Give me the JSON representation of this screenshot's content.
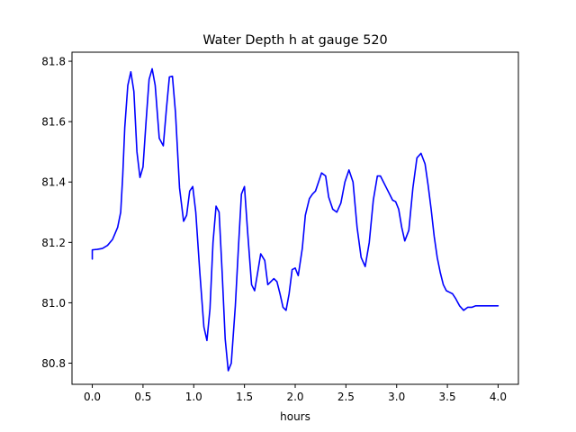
{
  "chart_data": {
    "type": "line",
    "title": "Water Depth h at gauge 520",
    "xlabel": "hours",
    "ylabel": "",
    "xlim": [
      -0.2,
      4.2
    ],
    "ylim": [
      80.73,
      81.83
    ],
    "xticks": [
      0.0,
      0.5,
      1.0,
      1.5,
      2.0,
      2.5,
      3.0,
      3.5,
      4.0
    ],
    "xtick_labels": [
      "0.0",
      "0.5",
      "1.0",
      "1.5",
      "2.0",
      "2.5",
      "3.0",
      "3.5",
      "4.0"
    ],
    "yticks": [
      80.8,
      81.0,
      81.2,
      81.4,
      81.6,
      81.8
    ],
    "ytick_labels": [
      "80.8",
      "81.0",
      "81.2",
      "81.4",
      "81.6",
      "81.8"
    ],
    "grid": false,
    "line_color": "#0000ff",
    "series": [
      {
        "x": [
          0.0,
          0.0,
          0.02,
          0.05,
          0.1,
          0.15,
          0.2,
          0.25,
          0.28,
          0.3,
          0.32,
          0.35,
          0.38,
          0.41,
          0.44,
          0.47,
          0.5,
          0.53,
          0.56,
          0.59,
          0.62,
          0.66,
          0.7,
          0.73,
          0.76,
          0.79,
          0.82,
          0.86,
          0.9,
          0.93,
          0.96,
          0.99,
          1.02,
          1.06,
          1.1,
          1.13,
          1.16,
          1.19,
          1.22,
          1.25,
          1.28,
          1.31,
          1.34,
          1.37,
          1.41,
          1.44,
          1.47,
          1.5,
          1.53,
          1.57,
          1.6,
          1.63,
          1.66,
          1.7,
          1.73,
          1.76,
          1.79,
          1.82,
          1.85,
          1.88,
          1.91,
          1.94,
          1.97,
          2.0,
          2.03,
          2.07,
          2.1,
          2.14,
          2.17,
          2.2,
          2.23,
          2.26,
          2.3,
          2.33,
          2.37,
          2.41,
          2.45,
          2.49,
          2.53,
          2.57,
          2.61,
          2.65,
          2.69,
          2.73,
          2.77,
          2.81,
          2.84,
          2.87,
          2.9,
          2.93,
          2.96,
          2.99,
          3.02,
          3.05,
          3.08,
          3.12,
          3.16,
          3.2,
          3.24,
          3.28,
          3.31,
          3.34,
          3.37,
          3.4,
          3.43,
          3.46,
          3.49,
          3.52,
          3.55,
          3.58,
          3.62,
          3.66,
          3.7,
          3.74,
          3.78,
          3.82,
          3.86,
          3.9,
          3.94,
          3.97,
          4.0
        ],
        "y": [
          81.145,
          81.175,
          81.176,
          81.177,
          81.18,
          81.19,
          81.21,
          81.25,
          81.3,
          81.42,
          81.58,
          81.72,
          81.765,
          81.7,
          81.5,
          81.415,
          81.45,
          81.6,
          81.74,
          81.775,
          81.72,
          81.545,
          81.52,
          81.64,
          81.748,
          81.75,
          81.63,
          81.38,
          81.27,
          81.29,
          81.37,
          81.385,
          81.3,
          81.1,
          80.92,
          80.875,
          80.98,
          81.2,
          81.32,
          81.3,
          81.1,
          80.88,
          80.775,
          80.8,
          80.99,
          81.18,
          81.36,
          81.385,
          81.24,
          81.06,
          81.04,
          81.1,
          81.162,
          81.14,
          81.06,
          81.07,
          81.08,
          81.07,
          81.03,
          80.985,
          80.975,
          81.03,
          81.11,
          81.115,
          81.09,
          81.18,
          81.29,
          81.345,
          81.36,
          81.37,
          81.4,
          81.43,
          81.42,
          81.35,
          81.31,
          81.3,
          81.33,
          81.4,
          81.44,
          81.4,
          81.25,
          81.15,
          81.12,
          81.2,
          81.34,
          81.42,
          81.42,
          81.4,
          81.38,
          81.36,
          81.34,
          81.335,
          81.31,
          81.25,
          81.205,
          81.24,
          81.38,
          81.48,
          81.495,
          81.46,
          81.39,
          81.31,
          81.22,
          81.15,
          81.1,
          81.06,
          81.04,
          81.035,
          81.03,
          81.015,
          80.99,
          80.975,
          80.985,
          80.985,
          80.99,
          80.99,
          80.99,
          80.99,
          80.99,
          80.99,
          80.99
        ]
      }
    ]
  }
}
